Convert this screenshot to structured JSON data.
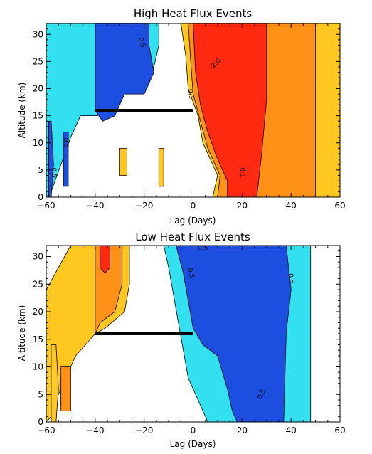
{
  "colors": {
    "dark_blue": "#1c4fe0",
    "light_blue": "#32e0f0",
    "yellow": "#ffc820",
    "orange": "#ff9018",
    "red": "#ff2a10",
    "contour": "#000000",
    "bar": "#000000"
  },
  "chart_data": [
    {
      "type": "heatmap",
      "title": "High Heat Flux Events",
      "xlabel": "Lag (Days)",
      "ylabel": "Altitude (km)",
      "xlim": [
        -60,
        60
      ],
      "ylim": [
        0,
        32
      ],
      "xticks": [
        -60,
        -40,
        -20,
        0,
        20,
        40,
        60
      ],
      "yticks": [
        0,
        5,
        10,
        15,
        20,
        25,
        30
      ],
      "grid": false,
      "reference_bar": {
        "x": [
          -40,
          0
        ],
        "y": 16
      },
      "contour_labels": [
        {
          "text": "0.5",
          "x": -21,
          "y": 28.5,
          "rotate": 70
        },
        {
          "text": "-2.0",
          "x": 9,
          "y": 24.5,
          "rotate": -45
        },
        {
          "text": "0.1",
          "x": -1,
          "y": 19,
          "rotate": 80
        },
        {
          "text": "0.1",
          "x": 20,
          "y": 4.5,
          "rotate": 90
        },
        {
          "text": "0.5",
          "x": -52,
          "y": 10,
          "rotate": 90
        },
        {
          "text": "0.5",
          "x": -57,
          "y": 4.5,
          "rotate": 90
        }
      ],
      "regions": [
        {
          "level": "light_blue",
          "points": [
            [
              -60,
              32
            ],
            [
              -39,
              32
            ],
            [
              -39,
              15
            ],
            [
              -46,
              15
            ],
            [
              -50,
              11
            ],
            [
              -54,
              6
            ],
            [
              -58,
              1
            ],
            [
              -60,
              0
            ]
          ]
        },
        {
          "level": "light_blue",
          "points": [
            [
              -22,
              32
            ],
            [
              -14,
              32
            ],
            [
              -14,
              28
            ],
            [
              -16,
              24
            ],
            [
              -20,
              23
            ],
            [
              -22,
              26
            ]
          ]
        },
        {
          "level": "dark_blue",
          "points": [
            [
              -40,
              32
            ],
            [
              -18,
              32
            ],
            [
              -18,
              28
            ],
            [
              -16,
              23
            ],
            [
              -20,
              19
            ],
            [
              -28,
              19
            ],
            [
              -32,
              15
            ],
            [
              -37,
              14
            ],
            [
              -40,
              16
            ]
          ]
        },
        {
          "level": "dark_blue",
          "points": [
            [
              -59,
              14
            ],
            [
              -58,
              14
            ],
            [
              -57,
              6
            ],
            [
              -58,
              0
            ],
            [
              -59,
              0
            ]
          ]
        },
        {
          "level": "dark_blue",
          "points": [
            [
              -53,
              12
            ],
            [
              -51,
              12
            ],
            [
              -51,
              2
            ],
            [
              -53,
              2
            ]
          ]
        },
        {
          "level": "yellow",
          "points": [
            [
              -5,
              32
            ],
            [
              60,
              32
            ],
            [
              60,
              0
            ],
            [
              8,
              0
            ],
            [
              10,
              4
            ],
            [
              4,
              10
            ],
            [
              2,
              15
            ],
            [
              -2,
              20
            ],
            [
              -3,
              26
            ]
          ]
        },
        {
          "level": "yellow",
          "points": [
            [
              -14,
              9
            ],
            [
              -12,
              9
            ],
            [
              -12,
              2
            ],
            [
              -14,
              2
            ]
          ]
        },
        {
          "level": "yellow",
          "points": [
            [
              -30,
              9
            ],
            [
              -27,
              9
            ],
            [
              -27,
              4
            ],
            [
              -30,
              4
            ]
          ]
        },
        {
          "level": "orange",
          "points": [
            [
              -2,
              32
            ],
            [
              50,
              32
            ],
            [
              50,
              0
            ],
            [
              10,
              0
            ],
            [
              11,
              4
            ],
            [
              6,
              9
            ],
            [
              3,
              14
            ],
            [
              0,
              19
            ],
            [
              -1,
              25
            ]
          ]
        },
        {
          "level": "red",
          "points": [
            [
              0,
              32
            ],
            [
              30,
              32
            ],
            [
              30,
              18
            ],
            [
              28,
              8
            ],
            [
              26,
              0
            ],
            [
              14,
              0
            ],
            [
              14,
              3
            ],
            [
              10,
              7
            ],
            [
              6,
              12
            ],
            [
              3,
              17
            ],
            [
              1,
              23
            ]
          ]
        }
      ]
    },
    {
      "type": "heatmap",
      "title": "Low Heat Flux Events",
      "xlabel": "Lag (Days)",
      "ylabel": "Altitude (km)",
      "xlim": [
        -60,
        60
      ],
      "ylim": [
        0,
        32
      ],
      "xticks": [
        -60,
        -40,
        -20,
        0,
        20,
        40,
        60
      ],
      "yticks": [
        0,
        5,
        10,
        15,
        20,
        25,
        30
      ],
      "grid": false,
      "reference_bar": {
        "x": [
          -40,
          0
        ],
        "y": 16
      },
      "contour_labels": [
        {
          "text": "0.5",
          "x": -1,
          "y": 27,
          "rotate": 75
        },
        {
          "text": "0.5",
          "x": 40,
          "y": 26,
          "rotate": 80
        },
        {
          "text": "0.5",
          "x": 28,
          "y": 5,
          "rotate": -60
        },
        {
          "text": "0.5",
          "x": 4,
          "y": 31.5,
          "rotate": 0
        }
      ],
      "regions": [
        {
          "level": "yellow",
          "points": [
            [
              -50,
              32
            ],
            [
              -26,
              32
            ],
            [
              -26,
              25
            ],
            [
              -28,
              20
            ],
            [
              -36,
              17
            ],
            [
              -40,
              16
            ],
            [
              -44,
              14
            ],
            [
              -48,
              12
            ],
            [
              -52,
              8
            ],
            [
              -56,
              4
            ],
            [
              -58,
              1
            ],
            [
              -60,
              0
            ],
            [
              -60,
              24
            ],
            [
              -55,
              28
            ]
          ]
        },
        {
          "level": "yellow",
          "points": [
            [
              -58,
              14
            ],
            [
              -56,
              14
            ],
            [
              -55,
              6
            ],
            [
              -56,
              0
            ],
            [
              -58,
              0
            ]
          ]
        },
        {
          "level": "yellow",
          "points": [
            [
              -54,
              8
            ],
            [
              -52,
              8
            ],
            [
              -52,
              3
            ],
            [
              -54,
              3
            ]
          ]
        },
        {
          "level": "orange",
          "points": [
            [
              -40,
              32
            ],
            [
              -29,
              32
            ],
            [
              -29,
              25
            ],
            [
              -32,
              20
            ],
            [
              -38,
              18
            ],
            [
              -40,
              16
            ]
          ]
        },
        {
          "level": "orange",
          "points": [
            [
              -54,
              10
            ],
            [
              -50,
              10
            ],
            [
              -50,
              2
            ],
            [
              -54,
              2
            ]
          ]
        },
        {
          "level": "red",
          "points": [
            [
              -38,
              32
            ],
            [
              -34,
              32
            ],
            [
              -34,
              28
            ],
            [
              -36,
              27
            ],
            [
              -38,
              28
            ]
          ]
        },
        {
          "level": "light_blue",
          "points": [
            [
              -12,
              32
            ],
            [
              48,
              32
            ],
            [
              48,
              0
            ],
            [
              6,
              0
            ],
            [
              2,
              4
            ],
            [
              -2,
              8
            ],
            [
              -4,
              13
            ],
            [
              -6,
              18
            ],
            [
              -8,
              23
            ],
            [
              -10,
              28
            ]
          ]
        },
        {
          "level": "dark_blue",
          "points": [
            [
              -7,
              32
            ],
            [
              38,
              32
            ],
            [
              40,
              24
            ],
            [
              38,
              16
            ],
            [
              37,
              0
            ],
            [
              18,
              0
            ],
            [
              16,
              2
            ],
            [
              14,
              6
            ],
            [
              10,
              12
            ],
            [
              4,
              14
            ],
            [
              0,
              17
            ],
            [
              -2,
              22
            ],
            [
              -4,
              27
            ]
          ]
        }
      ]
    }
  ]
}
